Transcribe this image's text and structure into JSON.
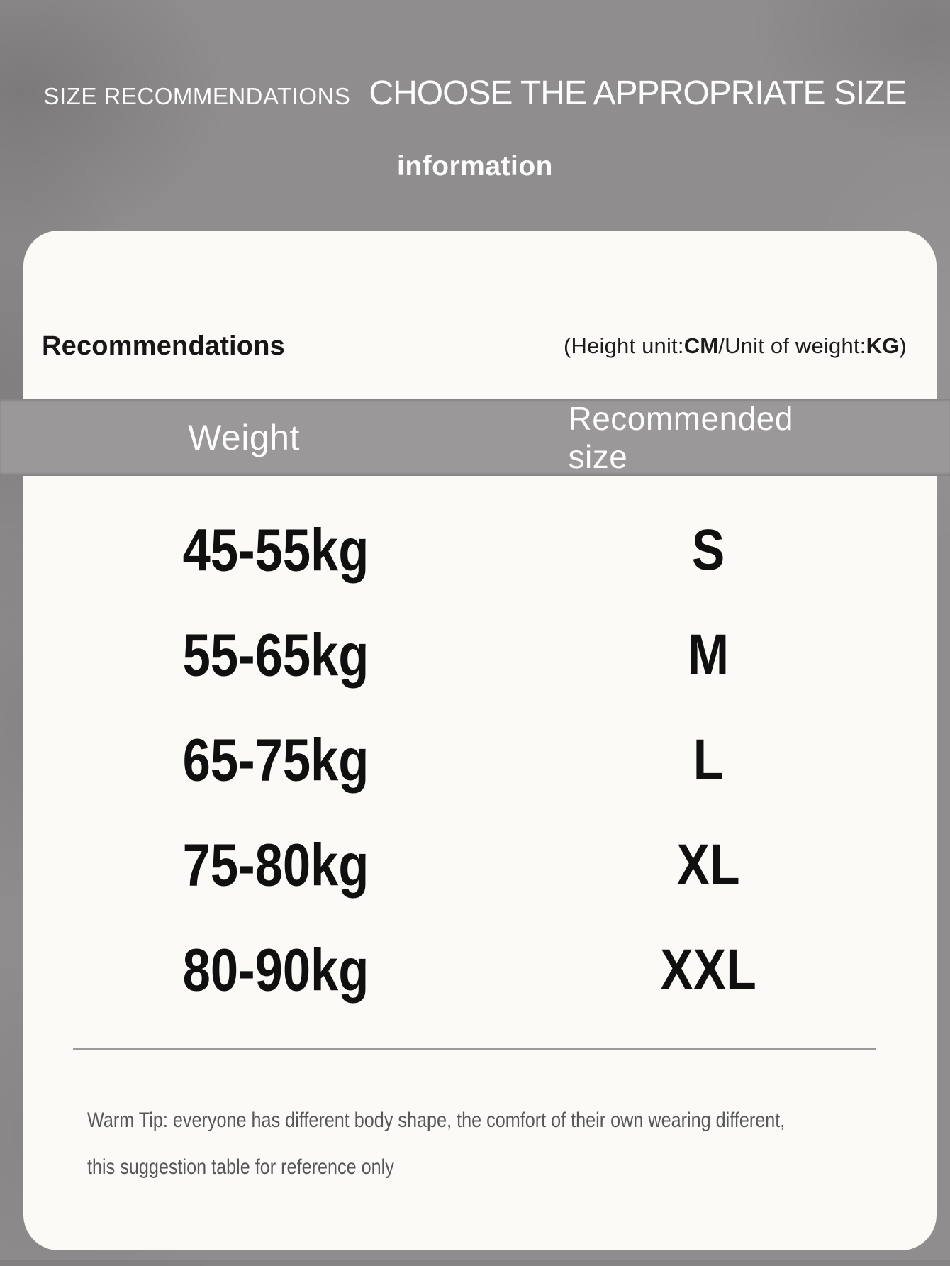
{
  "header": {
    "kicker": "SIZE RECOMMENDATIONS",
    "title": "CHOOSE THE APPROPRIATE SIZE",
    "subtitle": "information"
  },
  "card": {
    "section_title": "Recommendations",
    "units_note": {
      "prefix": "(Height unit:",
      "unit1": "CM",
      "middle": "/Unit of weight:",
      "unit2": "KG",
      "suffix": ")"
    },
    "table": {
      "columns": [
        "Weight",
        "Recommended size"
      ],
      "rows": [
        {
          "weight": "45-55kg",
          "size": "S"
        },
        {
          "weight": "55-65kg",
          "size": "M"
        },
        {
          "weight": "65-75kg",
          "size": "L"
        },
        {
          "weight": "75-80kg",
          "size": "XL"
        },
        {
          "weight": "80-90kg",
          "size": "XXL"
        }
      ]
    },
    "warm_tip": {
      "line1": "Warm Tip: everyone has different body shape, the comfort of their own wearing different,",
      "line2": "this suggestion table for reference only"
    }
  },
  "colors": {
    "background": "#908d8e",
    "header_bar": "#9b9899",
    "card": "#fbfaf6",
    "heading_text": "#fdfdfd",
    "row_text": "#101010",
    "tip_text": "#57575a"
  }
}
